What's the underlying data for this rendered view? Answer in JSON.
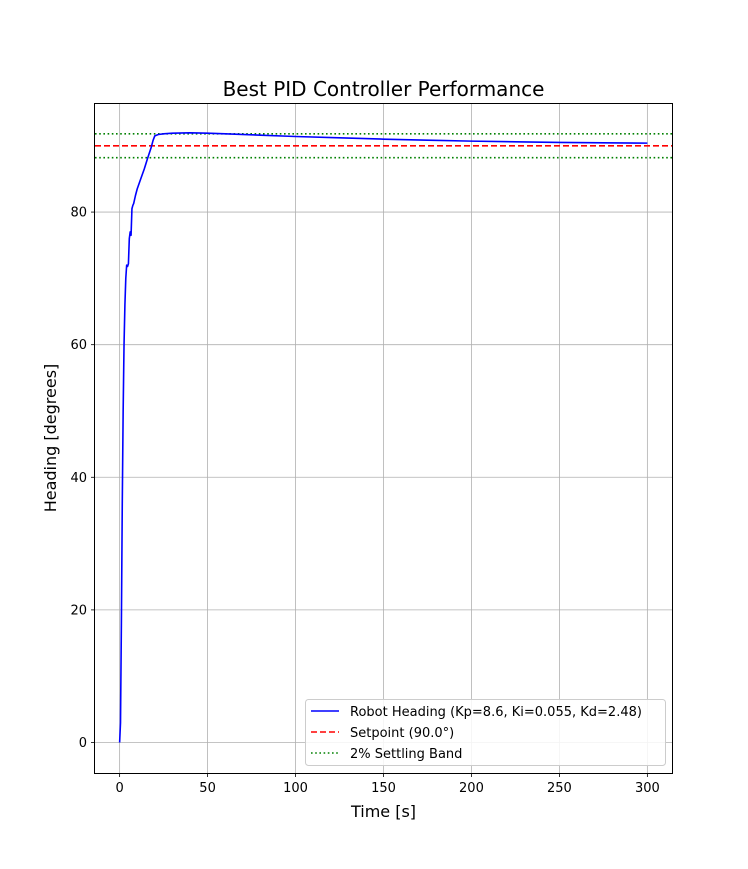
{
  "chart_data": {
    "type": "line",
    "title": "Best PID Controller Performance",
    "xlabel": "Time [s]",
    "ylabel": "Heading [degrees]",
    "xlim": [
      -14,
      314
    ],
    "ylim": [
      -4.6,
      96.3
    ],
    "xticks": [
      0,
      50,
      100,
      150,
      200,
      250,
      300
    ],
    "yticks": [
      0,
      20,
      40,
      60,
      80
    ],
    "grid": true,
    "legend_position": "lower-right",
    "series": [
      {
        "name": "Robot Heading (Kp=8.6, Ki=0.055, Kd=2.48)",
        "color": "#0000ff",
        "style": "solid",
        "x": [
          0,
          0.5,
          1,
          1.5,
          2,
          2.5,
          3,
          3.5,
          4,
          4.5,
          5,
          5.5,
          6,
          6.5,
          7,
          7.5,
          8,
          9,
          10,
          12,
          14,
          16,
          18,
          19,
          20,
          22,
          25,
          30,
          40,
          50,
          60,
          80,
          100,
          125,
          150,
          175,
          200,
          225,
          250,
          275,
          300
        ],
        "y": [
          0,
          3,
          18,
          36,
          50,
          60,
          66,
          70,
          72,
          71.8,
          72.2,
          76,
          77,
          76.5,
          80.5,
          81,
          81.3,
          82.5,
          83.5,
          85,
          86.5,
          88.2,
          89.8,
          90.8,
          91.5,
          91.7,
          91.8,
          91.9,
          91.95,
          91.9,
          91.8,
          91.6,
          91.4,
          91.2,
          91.0,
          90.85,
          90.7,
          90.6,
          90.5,
          90.45,
          90.4
        ]
      },
      {
        "name": "Setpoint (90.0°)",
        "color": "#ff0000",
        "style": "dashed",
        "y_const": 90.0
      },
      {
        "name": "2% Settling Band",
        "color": "#008000",
        "style": "dotted",
        "y_const": [
          88.2,
          91.8
        ]
      }
    ]
  }
}
